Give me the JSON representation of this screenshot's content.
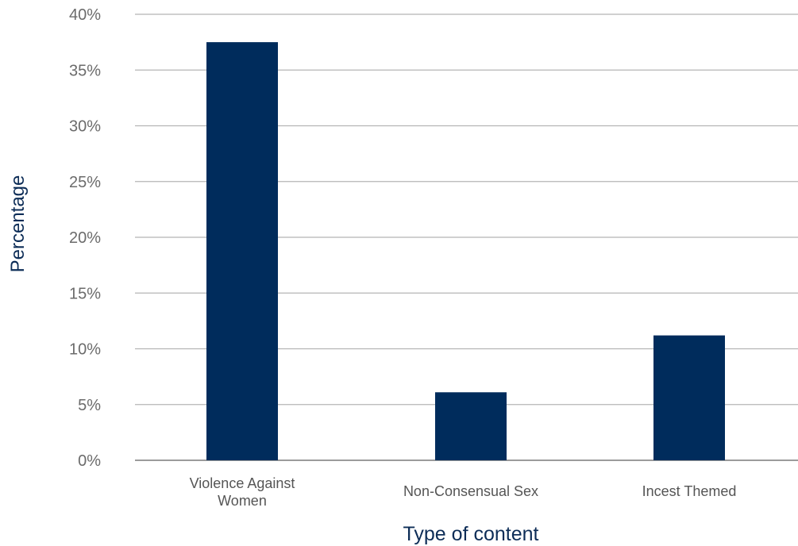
{
  "chart_data": {
    "type": "bar",
    "categories": [
      [
        "Violence Against",
        "Women"
      ],
      [
        "Non-Consensual Sex"
      ],
      [
        "Incest Themed"
      ]
    ],
    "values": [
      37.5,
      6.1,
      11.2
    ],
    "ylim": [
      0,
      40
    ],
    "yticks": [
      0,
      5,
      10,
      15,
      20,
      25,
      30,
      35,
      40
    ],
    "ytick_suffix": "%",
    "xlabel": "Type of content",
    "ylabel": "Percentage",
    "grid": true,
    "colors": {
      "bar": "#002c5c",
      "axis_title": "#0d2d57",
      "grid": "#b5b5b5"
    }
  }
}
